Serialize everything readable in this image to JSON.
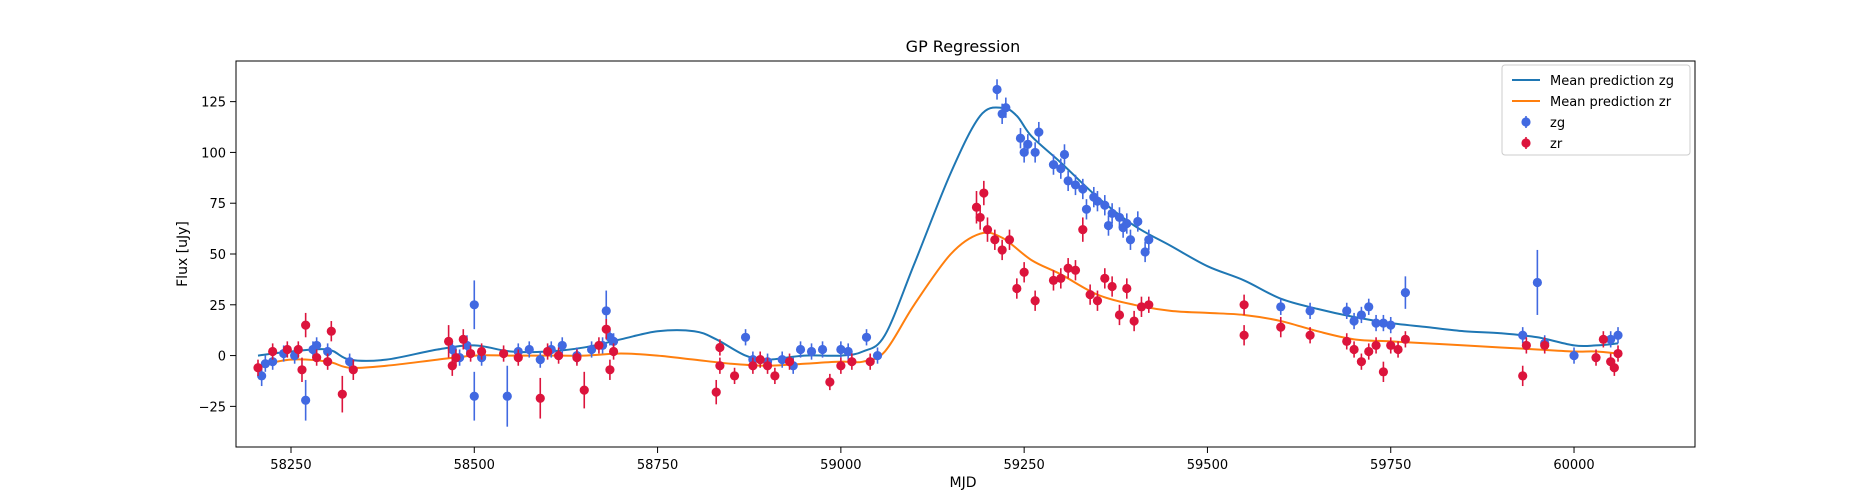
{
  "chart_data": {
    "type": "scatter",
    "title": "GP Regression",
    "xlabel": "MJD",
    "ylabel": "Flux [uJy]",
    "xlim": [
      58175,
      60165
    ],
    "ylim": [
      -45,
      145
    ],
    "xticks": [
      58250,
      58500,
      58750,
      59000,
      59250,
      59500,
      59750,
      60000
    ],
    "yticks": [
      -25,
      0,
      25,
      50,
      75,
      100,
      125
    ],
    "grid": false,
    "legend_position": "top-right",
    "legend": [
      {
        "label": "Mean prediction zg",
        "kind": "line",
        "color": "#1f77b4"
      },
      {
        "label": "Mean prediction zr",
        "kind": "line",
        "color": "#ff7f0e"
      },
      {
        "label": "zg",
        "kind": "errorbar",
        "color": "#4169e1"
      },
      {
        "label": "zr",
        "kind": "errorbar",
        "color": "#dc143c"
      }
    ],
    "lines": [
      {
        "name": "Mean prediction zg",
        "color": "#1f77b4",
        "x": [
          58205,
          58250,
          58300,
          58330,
          58380,
          58450,
          58500,
          58550,
          58600,
          58650,
          58700,
          58750,
          58800,
          58830,
          58870,
          58900,
          58950,
          59000,
          59030,
          59060,
          59100,
          59150,
          59190,
          59220,
          59240,
          59260,
          59300,
          59350,
          59400,
          59450,
          59500,
          59550,
          59600,
          59650,
          59700,
          59750,
          59800,
          59850,
          59900,
          59950,
          60000,
          60030,
          60060
        ],
        "y": [
          0,
          2,
          3,
          -2,
          -2,
          3,
          5,
          2,
          2,
          4,
          8,
          12,
          12,
          8,
          0,
          -2,
          0,
          0,
          2,
          10,
          45,
          90,
          118,
          122,
          118,
          108,
          95,
          78,
          64,
          54,
          44,
          37,
          28,
          23,
          19,
          16,
          14,
          12,
          11,
          9,
          5,
          5,
          6
        ]
      },
      {
        "name": "Mean prediction zr",
        "color": "#ff7f0e",
        "x": [
          58205,
          58250,
          58300,
          58330,
          58380,
          58450,
          58500,
          58550,
          58600,
          58650,
          58700,
          58750,
          58800,
          58850,
          58900,
          58950,
          59000,
          59030,
          59060,
          59100,
          59150,
          59190,
          59220,
          59260,
          59300,
          59350,
          59400,
          59450,
          59500,
          59550,
          59600,
          59650,
          59700,
          59750,
          59800,
          59850,
          59900,
          59950,
          60000,
          60030,
          60060
        ],
        "y": [
          -5,
          -2,
          -3,
          -6,
          -5,
          -2,
          0,
          0,
          0,
          0,
          1,
          0,
          -2,
          -4,
          -5,
          -4,
          -3,
          -3,
          2,
          25,
          50,
          60,
          58,
          47,
          40,
          30,
          25,
          22,
          21,
          20,
          17,
          12,
          8,
          7,
          6,
          5,
          4,
          3,
          2,
          2,
          1
        ]
      }
    ],
    "series": [
      {
        "name": "zg",
        "color": "#4169e1",
        "points": [
          [
            58210,
            -10,
            5
          ],
          [
            58215,
            -4,
            4
          ],
          [
            58225,
            -3,
            4
          ],
          [
            58240,
            1,
            4
          ],
          [
            58255,
            0,
            4
          ],
          [
            58270,
            -22,
            10
          ],
          [
            58280,
            3,
            4
          ],
          [
            58285,
            5,
            4
          ],
          [
            58300,
            2,
            4
          ],
          [
            58330,
            -3,
            4
          ],
          [
            58470,
            3,
            4
          ],
          [
            58480,
            -1,
            4
          ],
          [
            58490,
            5,
            5
          ],
          [
            58500,
            25,
            12
          ],
          [
            58500,
            -20,
            12
          ],
          [
            58510,
            -1,
            4
          ],
          [
            58545,
            -20,
            15
          ],
          [
            58560,
            2,
            4
          ],
          [
            58575,
            3,
            4
          ],
          [
            58590,
            -2,
            4
          ],
          [
            58605,
            3,
            4
          ],
          [
            58620,
            5,
            4
          ],
          [
            58640,
            0,
            4
          ],
          [
            58660,
            3,
            4
          ],
          [
            58675,
            5,
            4
          ],
          [
            58680,
            22,
            10
          ],
          [
            58685,
            9,
            4
          ],
          [
            58690,
            7,
            4
          ],
          [
            58870,
            9,
            4
          ],
          [
            58880,
            -2,
            4
          ],
          [
            58900,
            -3,
            4
          ],
          [
            58920,
            -2,
            4
          ],
          [
            58935,
            -5,
            4
          ],
          [
            58945,
            3,
            4
          ],
          [
            58960,
            2,
            4
          ],
          [
            58975,
            3,
            4
          ],
          [
            59000,
            3,
            4
          ],
          [
            59010,
            2,
            4
          ],
          [
            59035,
            9,
            4
          ],
          [
            59050,
            0,
            4
          ],
          [
            59213,
            131,
            5
          ],
          [
            59220,
            119,
            5
          ],
          [
            59225,
            122,
            5
          ],
          [
            59245,
            107,
            5
          ],
          [
            59250,
            100,
            5
          ],
          [
            59255,
            104,
            5
          ],
          [
            59265,
            100,
            5
          ],
          [
            59270,
            110,
            5
          ],
          [
            59290,
            94,
            5
          ],
          [
            59300,
            92,
            5
          ],
          [
            59305,
            99,
            5
          ],
          [
            59310,
            86,
            5
          ],
          [
            59320,
            84,
            5
          ],
          [
            59330,
            82,
            5
          ],
          [
            59335,
            72,
            5
          ],
          [
            59345,
            78,
            5
          ],
          [
            59350,
            76,
            5
          ],
          [
            59360,
            74,
            5
          ],
          [
            59365,
            64,
            5
          ],
          [
            59370,
            70,
            5
          ],
          [
            59380,
            68,
            5
          ],
          [
            59385,
            63,
            5
          ],
          [
            59390,
            65,
            5
          ],
          [
            59395,
            57,
            5
          ],
          [
            59405,
            66,
            5
          ],
          [
            59415,
            51,
            5
          ],
          [
            59420,
            57,
            5
          ],
          [
            59600,
            24,
            4
          ],
          [
            59640,
            22,
            4
          ],
          [
            59690,
            22,
            4
          ],
          [
            59700,
            17,
            4
          ],
          [
            59710,
            20,
            4
          ],
          [
            59720,
            24,
            4
          ],
          [
            59730,
            16,
            4
          ],
          [
            59740,
            16,
            4
          ],
          [
            59750,
            15,
            4
          ],
          [
            59770,
            31,
            8
          ],
          [
            59930,
            10,
            4
          ],
          [
            59950,
            36,
            16
          ],
          [
            59960,
            6,
            4
          ],
          [
            60000,
            0,
            4
          ],
          [
            60050,
            8,
            4
          ],
          [
            60060,
            10,
            4
          ]
        ]
      },
      {
        "name": "zr",
        "color": "#dc143c",
        "points": [
          [
            58205,
            -6,
            4
          ],
          [
            58225,
            2,
            4
          ],
          [
            58245,
            3,
            4
          ],
          [
            58260,
            3,
            4
          ],
          [
            58265,
            -7,
            6
          ],
          [
            58270,
            15,
            6
          ],
          [
            58285,
            -1,
            4
          ],
          [
            58300,
            -3,
            4
          ],
          [
            58305,
            12,
            5
          ],
          [
            58320,
            -19,
            9
          ],
          [
            58335,
            -7,
            5
          ],
          [
            58465,
            7,
            8
          ],
          [
            58470,
            -5,
            5
          ],
          [
            58475,
            -1,
            4
          ],
          [
            58485,
            8,
            5
          ],
          [
            58495,
            1,
            4
          ],
          [
            58510,
            2,
            4
          ],
          [
            58540,
            1,
            4
          ],
          [
            58560,
            -1,
            4
          ],
          [
            58590,
            -21,
            10
          ],
          [
            58600,
            2,
            4
          ],
          [
            58615,
            0,
            4
          ],
          [
            58640,
            -1,
            4
          ],
          [
            58650,
            -17,
            9
          ],
          [
            58670,
            5,
            4
          ],
          [
            58680,
            13,
            5
          ],
          [
            58685,
            -7,
            5
          ],
          [
            58690,
            2,
            4
          ],
          [
            58830,
            -18,
            6
          ],
          [
            58835,
            4,
            4
          ],
          [
            58835,
            -5,
            4
          ],
          [
            58855,
            -10,
            4
          ],
          [
            58880,
            -5,
            4
          ],
          [
            58890,
            -2,
            4
          ],
          [
            58900,
            -5,
            4
          ],
          [
            58910,
            -10,
            4
          ],
          [
            58930,
            -3,
            4
          ],
          [
            58985,
            -13,
            4
          ],
          [
            59000,
            -5,
            4
          ],
          [
            59015,
            -3,
            4
          ],
          [
            59040,
            -3,
            4
          ],
          [
            59185,
            73,
            8
          ],
          [
            59190,
            68,
            6
          ],
          [
            59195,
            80,
            6
          ],
          [
            59200,
            62,
            6
          ],
          [
            59210,
            57,
            5
          ],
          [
            59220,
            52,
            5
          ],
          [
            59230,
            57,
            5
          ],
          [
            59240,
            33,
            5
          ],
          [
            59250,
            41,
            5
          ],
          [
            59265,
            27,
            5
          ],
          [
            59290,
            37,
            5
          ],
          [
            59300,
            38,
            5
          ],
          [
            59310,
            43,
            5
          ],
          [
            59320,
            42,
            5
          ],
          [
            59330,
            62,
            6
          ],
          [
            59340,
            30,
            5
          ],
          [
            59350,
            27,
            5
          ],
          [
            59360,
            38,
            5
          ],
          [
            59370,
            34,
            5
          ],
          [
            59380,
            20,
            5
          ],
          [
            59390,
            33,
            5
          ],
          [
            59400,
            17,
            5
          ],
          [
            59410,
            24,
            5
          ],
          [
            59420,
            25,
            4
          ],
          [
            59550,
            25,
            5
          ],
          [
            59550,
            10,
            5
          ],
          [
            59600,
            14,
            5
          ],
          [
            59640,
            10,
            4
          ],
          [
            59690,
            7,
            4
          ],
          [
            59700,
            3,
            4
          ],
          [
            59710,
            -3,
            4
          ],
          [
            59720,
            2,
            4
          ],
          [
            59730,
            5,
            4
          ],
          [
            59740,
            -8,
            5
          ],
          [
            59750,
            5,
            4
          ],
          [
            59760,
            3,
            4
          ],
          [
            59770,
            8,
            4
          ],
          [
            59930,
            -10,
            5
          ],
          [
            59935,
            5,
            4
          ],
          [
            59960,
            5,
            4
          ],
          [
            60030,
            -1,
            4
          ],
          [
            60040,
            8,
            4
          ],
          [
            60050,
            -3,
            4
          ],
          [
            60055,
            -6,
            4
          ],
          [
            60060,
            1,
            4
          ]
        ]
      }
    ]
  }
}
